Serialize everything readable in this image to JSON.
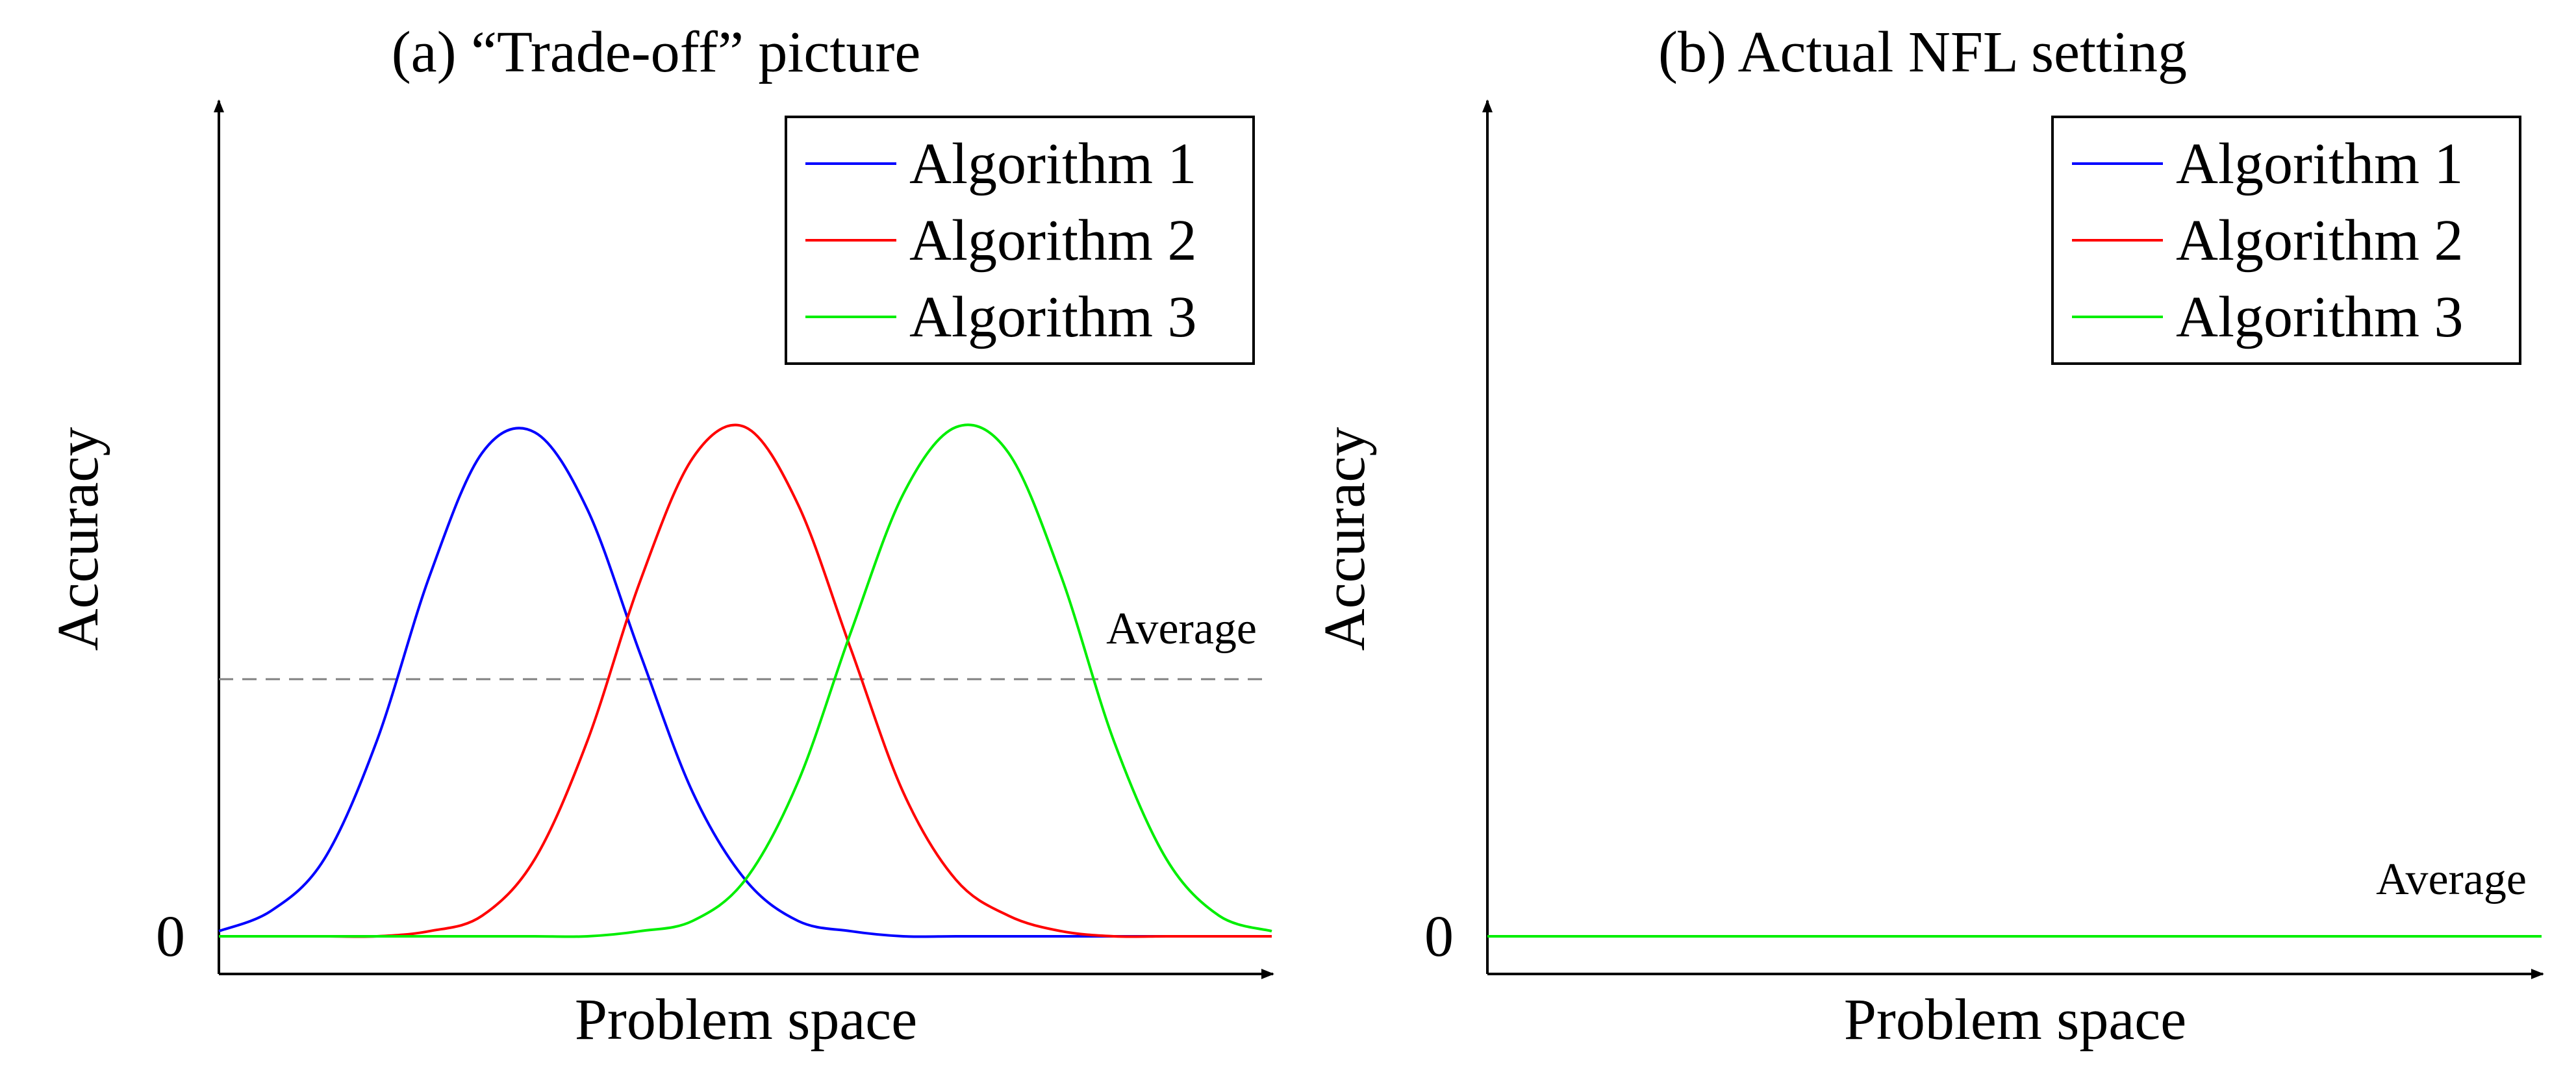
{
  "chart_data": [
    {
      "type": "line",
      "title": "(a) “Trade-off” picture",
      "xlabel": "Problem space",
      "ylabel": "Accuracy",
      "ytick_labels": [
        "0"
      ],
      "xlim": [
        0,
        1
      ],
      "ylim": [
        0,
        1.5
      ],
      "grid": false,
      "legend_position": "top-right",
      "annotation": "Average",
      "average_value": 0.5,
      "series": [
        {
          "name": "Algorithm 1",
          "color": "#0000ff",
          "x": [
            0,
            0.05,
            0.1,
            0.15,
            0.2,
            0.25,
            0.3,
            0.35,
            0.4,
            0.45,
            0.5,
            0.55,
            0.6,
            0.65,
            0.7,
            0.75,
            0.8,
            0.85,
            0.9,
            0.95,
            1.0
          ],
          "values": [
            0.01,
            0.05,
            0.15,
            0.38,
            0.7,
            0.94,
            0.98,
            0.83,
            0.55,
            0.28,
            0.11,
            0.03,
            0.01,
            0,
            0,
            0,
            0,
            0,
            0,
            0,
            0
          ]
        },
        {
          "name": "Algorithm 2",
          "color": "#ff0000",
          "x": [
            0,
            0.05,
            0.1,
            0.15,
            0.2,
            0.25,
            0.3,
            0.35,
            0.4,
            0.45,
            0.5,
            0.55,
            0.6,
            0.65,
            0.7,
            0.75,
            0.8,
            0.85,
            0.9,
            0.95,
            1.0
          ],
          "values": [
            0,
            0,
            0,
            0,
            0.01,
            0.04,
            0.15,
            0.38,
            0.69,
            0.93,
            0.99,
            0.84,
            0.56,
            0.28,
            0.11,
            0.04,
            0.01,
            0,
            0,
            0,
            0
          ]
        },
        {
          "name": "Algorithm 3",
          "color": "#00ee00",
          "x": [
            0,
            0.05,
            0.1,
            0.15,
            0.2,
            0.25,
            0.3,
            0.35,
            0.4,
            0.45,
            0.5,
            0.55,
            0.6,
            0.65,
            0.7,
            0.75,
            0.8,
            0.85,
            0.9,
            0.95,
            1.0
          ],
          "values": [
            0,
            0,
            0,
            0,
            0,
            0,
            0,
            0,
            0.01,
            0.03,
            0.11,
            0.3,
            0.59,
            0.86,
            0.99,
            0.94,
            0.7,
            0.38,
            0.15,
            0.04,
            0.01
          ]
        }
      ]
    },
    {
      "type": "line",
      "title": "(b) Actual NFL setting",
      "xlabel": "Problem space",
      "ylabel": "Accuracy",
      "ytick_labels": [
        "0"
      ],
      "xlim": [
        0,
        1
      ],
      "ylim": [
        0,
        1.5
      ],
      "grid": false,
      "legend_position": "top-right",
      "annotation": "Average",
      "average_value": 0,
      "series": [
        {
          "name": "Algorithm 1",
          "color": "#0000ff",
          "x": [
            0,
            1
          ],
          "values": [
            0,
            0
          ]
        },
        {
          "name": "Algorithm 2",
          "color": "#ff0000",
          "x": [
            0,
            1
          ],
          "values": [
            0,
            0
          ]
        },
        {
          "name": "Algorithm 3",
          "color": "#00ee00",
          "x": [
            0,
            1
          ],
          "values": [
            0,
            0
          ]
        }
      ]
    }
  ]
}
